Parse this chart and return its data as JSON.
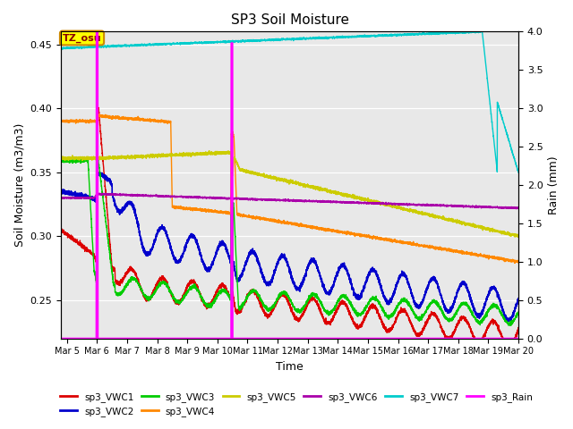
{
  "title": "SP3 Soil Moisture",
  "xlabel": "Time",
  "ylabel_left": "Soil Moisture (m3/m3)",
  "ylabel_right": "Rain (mm)",
  "ylim_left": [
    0.22,
    0.46
  ],
  "ylim_right": [
    0.0,
    4.0
  ],
  "bg_color": "#e8e8e8",
  "tz_label": "TZ_osu",
  "tz_box_color": "#ffff00",
  "tz_text_color": "#880000",
  "tz_border_color": "#cc8800",
  "x_start": 4.8,
  "x_end": 20.0,
  "x_ticks": [
    5,
    6,
    7,
    8,
    9,
    10,
    11,
    12,
    13,
    14,
    15,
    16,
    17,
    18,
    19,
    20
  ],
  "x_tick_labels": [
    "Mar 5",
    "Mar 6",
    "Mar 7",
    "Mar 8",
    "Mar 9",
    "Mar 10",
    "Mar 11",
    "Mar 12",
    "Mar 13",
    "Mar 14",
    "Mar 15",
    "Mar 16",
    "Mar 17",
    "Mar 18",
    "Mar 19",
    "Mar 20"
  ],
  "series": {
    "sp3_VWC1": {
      "color": "#dd0000",
      "lw": 1.0
    },
    "sp3_VWC2": {
      "color": "#0000cc",
      "lw": 1.2
    },
    "sp3_VWC3": {
      "color": "#00cc00",
      "lw": 1.0
    },
    "sp3_VWC4": {
      "color": "#ff8800",
      "lw": 1.0
    },
    "sp3_VWC5": {
      "color": "#cccc00",
      "lw": 1.0
    },
    "sp3_VWC6": {
      "color": "#aa00aa",
      "lw": 1.0
    },
    "sp3_VWC7": {
      "color": "#00cccc",
      "lw": 1.0
    },
    "sp3_Rain": {
      "color": "#ff00ff",
      "lw": 1.5
    }
  }
}
